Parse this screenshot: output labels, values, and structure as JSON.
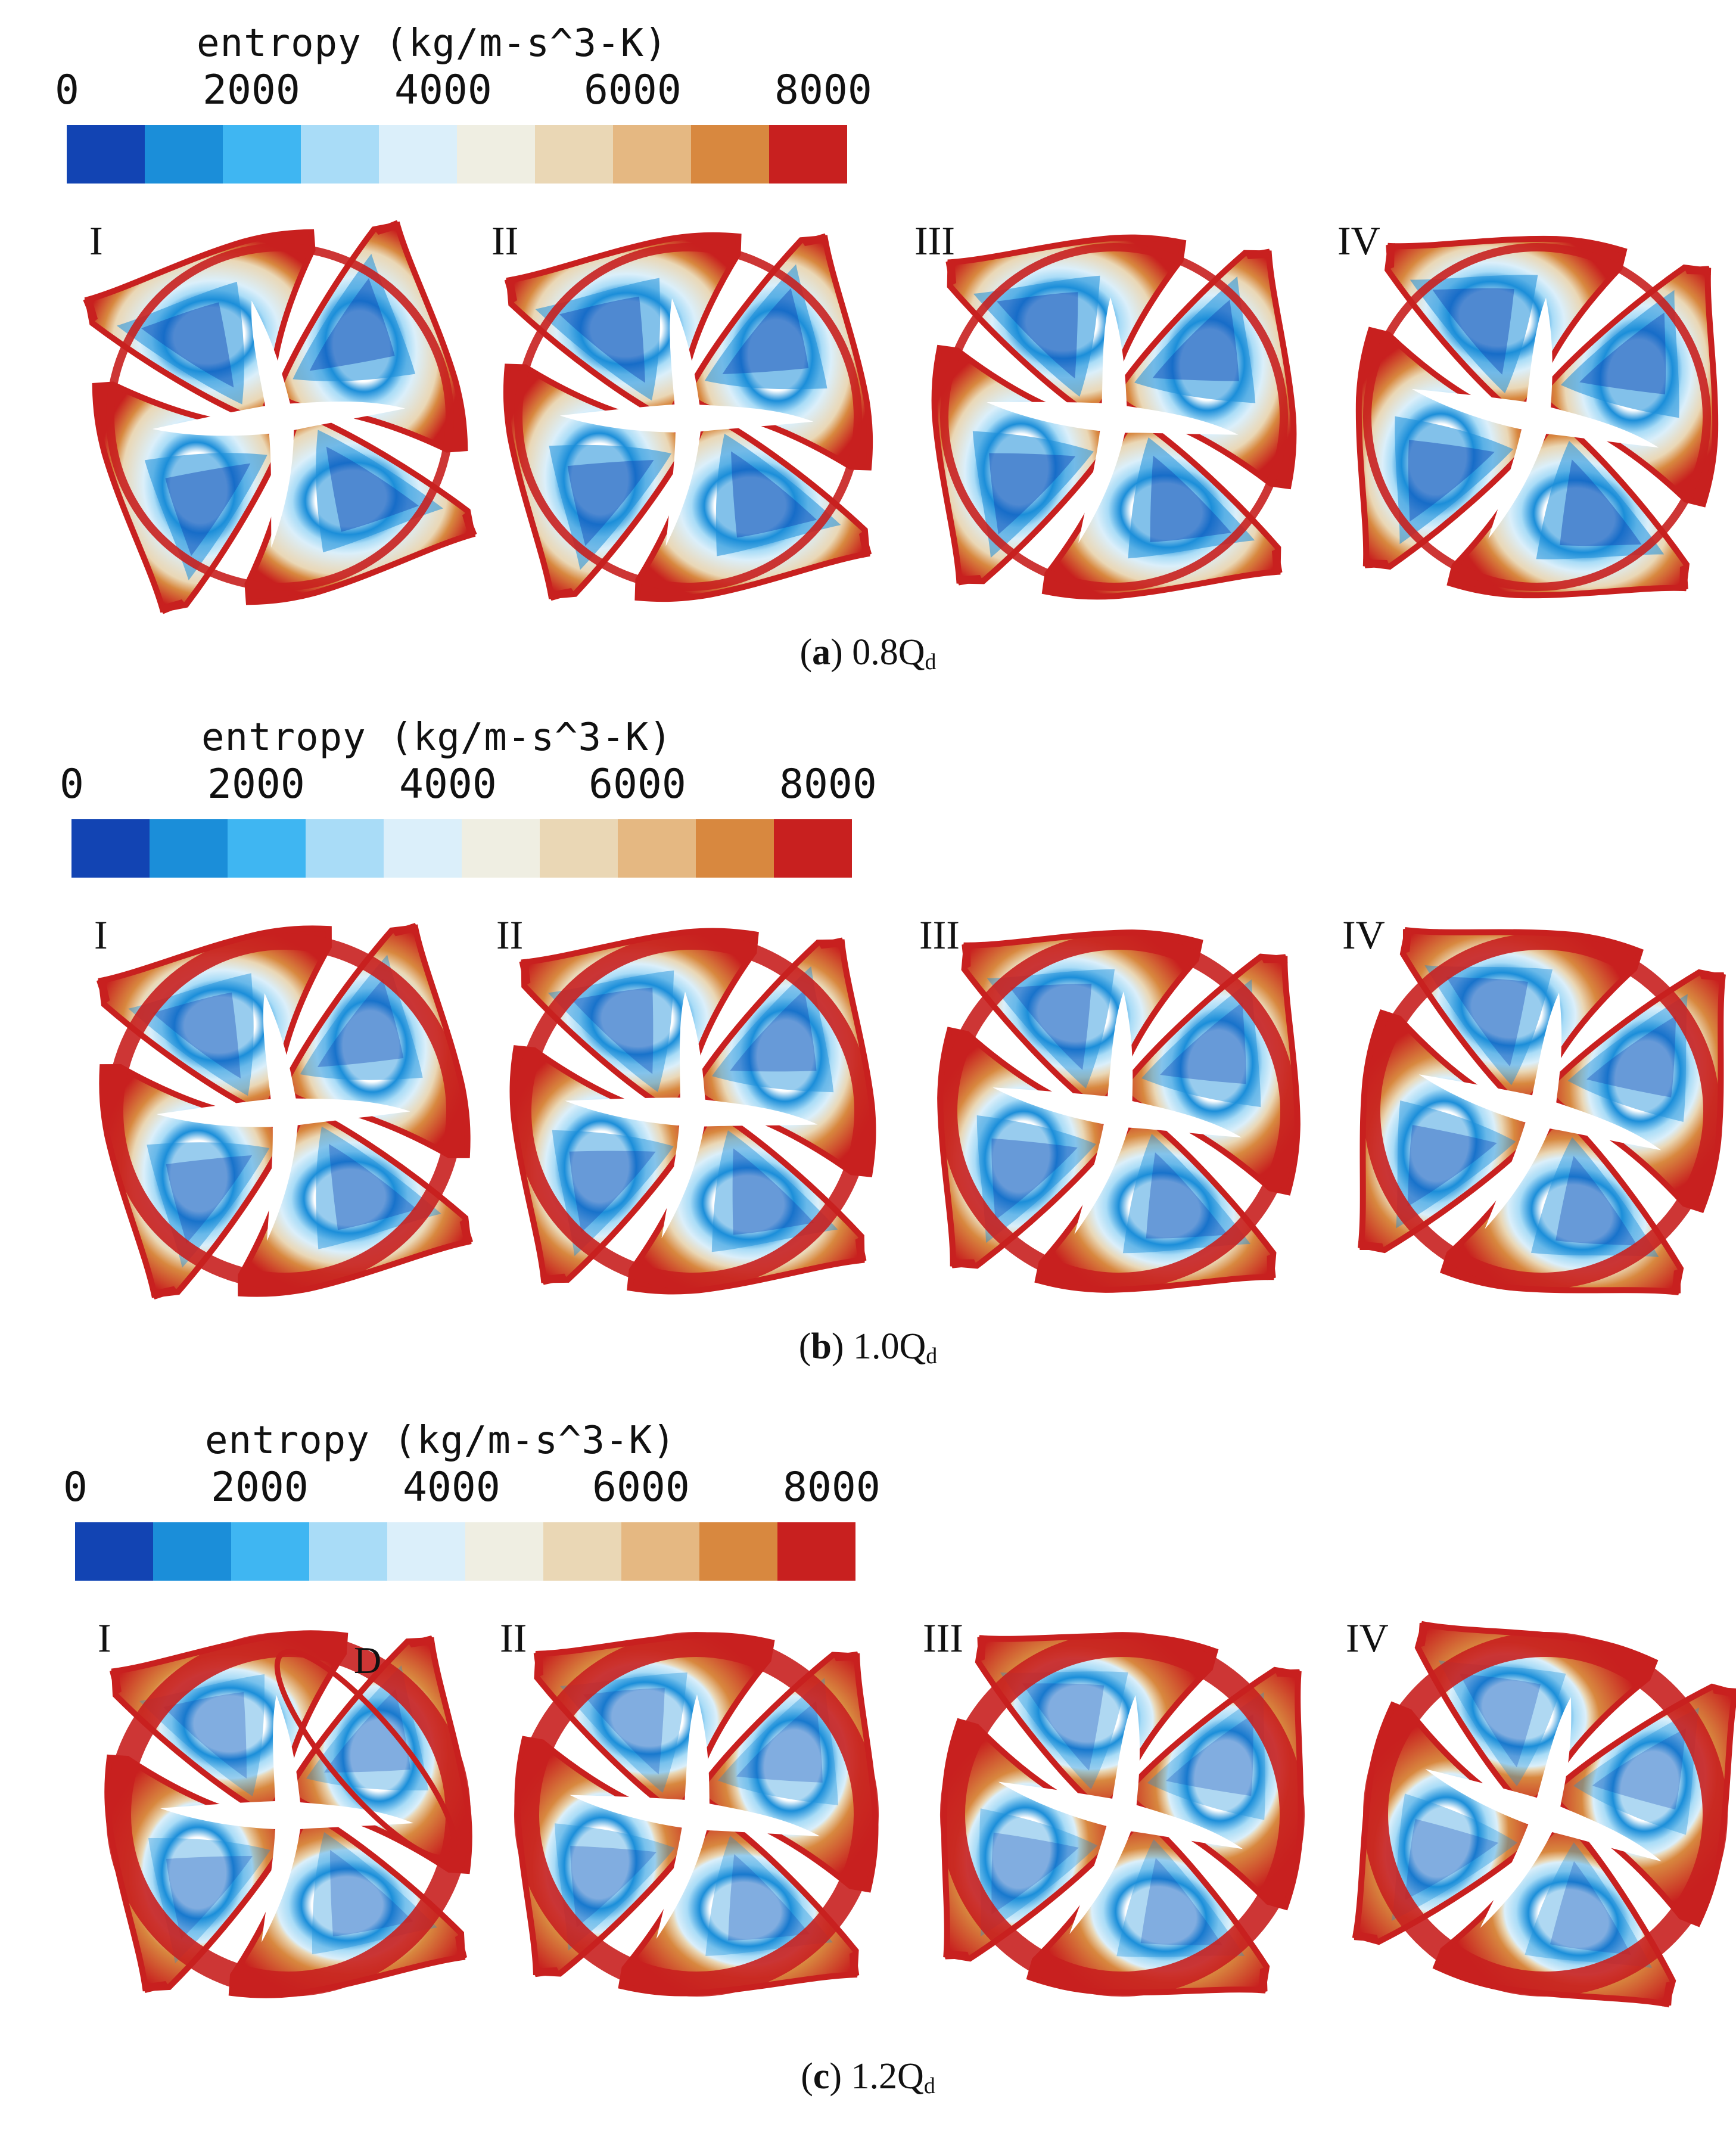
{
  "colorbar": {
    "title": "entropy (kg/m-s^3-K)",
    "ticks": [
      "0",
      "2000",
      "4000",
      "6000",
      "8000"
    ],
    "colors": [
      "#1244b3",
      "#1b8ed9",
      "#3fb6f2",
      "#a9dcf7",
      "#dbeffa",
      "#efeee2",
      "#ead7b5",
      "#e5b882",
      "#d8883f",
      "#c8201f"
    ]
  },
  "panels": [
    {
      "caption_letter": "a",
      "caption_value": "0.8Q",
      "caption_sub": "d",
      "labels": [
        "I",
        "II",
        "III",
        "IV"
      ],
      "annotation": null
    },
    {
      "caption_letter": "b",
      "caption_value": "1.0Q",
      "caption_sub": "d",
      "labels": [
        "I",
        "II",
        "III",
        "IV"
      ],
      "annotation": null
    },
    {
      "caption_letter": "c",
      "caption_value": "1.2Q",
      "caption_sub": "d",
      "labels": [
        "I",
        "II",
        "III",
        "IV"
      ],
      "annotation": "D"
    }
  ]
}
